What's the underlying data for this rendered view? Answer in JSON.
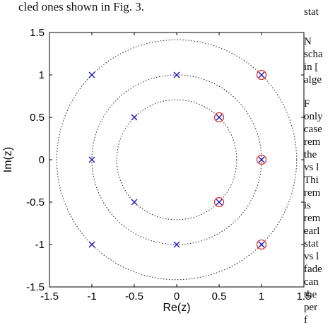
{
  "page_text": {
    "caption_fragment": "cled ones shown in Fig. 3.",
    "right_column": [
      "stat",
      "N",
      "scha",
      "in [",
      "alge",
      "F",
      "only",
      "case",
      "rem",
      "the",
      "vs l",
      "Thi",
      "rem",
      "is",
      "rem",
      "earl",
      "stat",
      "vs l",
      "fade",
      "can",
      "the",
      "per",
      "f"
    ]
  },
  "chart_data": {
    "type": "scatter",
    "title": "",
    "xlabel": "Re(z)",
    "ylabel": "Im(z)",
    "xlim": [
      -1.5,
      1.5
    ],
    "ylim": [
      -1.5,
      1.5
    ],
    "xticks": [
      "-1.5",
      "-1",
      "-0.5",
      "0",
      "0.5",
      "1",
      "1.5"
    ],
    "yticks": [
      "1.5",
      "1",
      "0.5",
      "0",
      "-0.5",
      "-1",
      "-1.5"
    ],
    "circles": [
      {
        "radius": 0.7071
      },
      {
        "radius": 1.0
      },
      {
        "radius": 1.4142
      }
    ],
    "cross_points": [
      {
        "x": -1,
        "y": 1
      },
      {
        "x": 0,
        "y": 1
      },
      {
        "x": 1,
        "y": 1
      },
      {
        "x": -0.5,
        "y": 0.5
      },
      {
        "x": 0.5,
        "y": 0.5
      },
      {
        "x": -1,
        "y": 0
      },
      {
        "x": 1,
        "y": 0
      },
      {
        "x": -0.5,
        "y": -0.5
      },
      {
        "x": 0.5,
        "y": -0.5
      },
      {
        "x": -1,
        "y": -1
      },
      {
        "x": 0,
        "y": -1
      },
      {
        "x": 1,
        "y": -1
      }
    ],
    "circled_points": [
      {
        "x": 1,
        "y": 1
      },
      {
        "x": 0.5,
        "y": 0.5
      },
      {
        "x": 1,
        "y": 0
      },
      {
        "x": 0.5,
        "y": -0.5
      },
      {
        "x": 1,
        "y": -1
      }
    ],
    "colors": {
      "cross": "#1a1ab8",
      "circled": "#e03030",
      "reference_circle": "#333333"
    }
  }
}
